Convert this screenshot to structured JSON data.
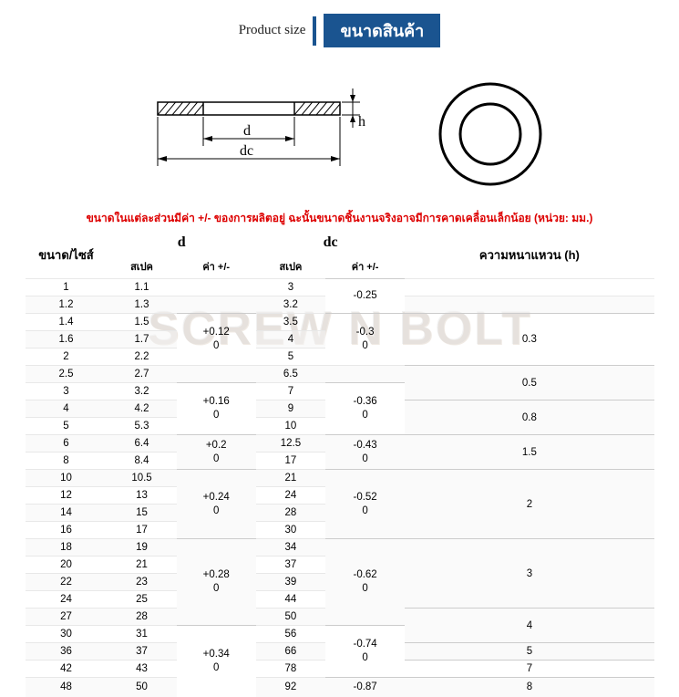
{
  "header": {
    "product_size_en": "Product size",
    "product_size_th": "ขนาดสินค้า"
  },
  "diagram": {
    "labels": {
      "d": "d",
      "dc": "dc",
      "h": "h"
    }
  },
  "note": "ขนาดในแต่ละส่วนมีค่า +/- ของการผลิตอยู่ ฉะนั้นขนาดชิ้นงานจริงอาจมีการคาดเคลื่อนเล็กน้อย (หน่วย: มม.)",
  "watermark": "SCREW N BOLT",
  "table": {
    "columns": {
      "size": "ขนาด/ไซส์",
      "d": "d",
      "dc": "dc",
      "h": "ความหนาแหวน (h)",
      "spec": "สเปค",
      "tol": "ค่า +/-"
    },
    "rows": [
      {
        "size": "1",
        "d_spec": "1.1",
        "dc_spec": "3"
      },
      {
        "size": "1.2",
        "d_spec": "1.3",
        "dc_spec": "3.2"
      },
      {
        "size": "1.4",
        "d_spec": "1.5",
        "dc_spec": "3.5"
      },
      {
        "size": "1.6",
        "d_spec": "1.7",
        "dc_spec": "4"
      },
      {
        "size": "2",
        "d_spec": "2.2",
        "dc_spec": "5"
      },
      {
        "size": "2.5",
        "d_spec": "2.7",
        "dc_spec": "6.5"
      },
      {
        "size": "3",
        "d_spec": "3.2",
        "dc_spec": "7"
      },
      {
        "size": "4",
        "d_spec": "4.2",
        "dc_spec": "9"
      },
      {
        "size": "5",
        "d_spec": "5.3",
        "dc_spec": "10"
      },
      {
        "size": "6",
        "d_spec": "6.4",
        "dc_spec": "12.5"
      },
      {
        "size": "8",
        "d_spec": "8.4",
        "dc_spec": "17"
      },
      {
        "size": "10",
        "d_spec": "10.5",
        "dc_spec": "21"
      },
      {
        "size": "12",
        "d_spec": "13",
        "dc_spec": "24"
      },
      {
        "size": "14",
        "d_spec": "15",
        "dc_spec": "28"
      },
      {
        "size": "16",
        "d_spec": "17",
        "dc_spec": "30"
      },
      {
        "size": "18",
        "d_spec": "19",
        "dc_spec": "34"
      },
      {
        "size": "20",
        "d_spec": "21",
        "dc_spec": "37"
      },
      {
        "size": "22",
        "d_spec": "23",
        "dc_spec": "39"
      },
      {
        "size": "24",
        "d_spec": "25",
        "dc_spec": "44"
      },
      {
        "size": "27",
        "d_spec": "28",
        "dc_spec": "50"
      },
      {
        "size": "30",
        "d_spec": "31",
        "dc_spec": "56"
      },
      {
        "size": "36",
        "d_spec": "37",
        "dc_spec": "66"
      },
      {
        "size": "42",
        "d_spec": "43",
        "dc_spec": "78"
      },
      {
        "size": "48",
        "d_spec": "50",
        "dc_spec": "92"
      }
    ],
    "d_tol_groups": [
      {
        "start": 2,
        "span": 3,
        "t1": "+0.12",
        "t2": "0"
      },
      {
        "start": 6,
        "span": 3,
        "t1": "+0.16",
        "t2": "0"
      },
      {
        "start": 9,
        "span": 2,
        "t1": "+0.2",
        "t2": "0"
      },
      {
        "start": 11,
        "span": 4,
        "t1": "+0.24",
        "t2": "0"
      },
      {
        "start": 15,
        "span": 5,
        "t1": "+0.28",
        "t2": "0"
      },
      {
        "start": 20,
        "span": 4,
        "t1": "+0.34",
        "t2": "0"
      }
    ],
    "dc_tol_groups": [
      {
        "start": 0,
        "span": 2,
        "t1": "-0.25",
        "t2": ""
      },
      {
        "start": 2,
        "span": 3,
        "t1": "-0.3",
        "t2": "0"
      },
      {
        "start": 6,
        "span": 3,
        "t1": "-0.36",
        "t2": "0"
      },
      {
        "start": 9,
        "span": 2,
        "t1": "-0.43",
        "t2": "0"
      },
      {
        "start": 11,
        "span": 4,
        "t1": "-0.52",
        "t2": "0"
      },
      {
        "start": 15,
        "span": 5,
        "t1": "-0.62",
        "t2": "0"
      },
      {
        "start": 20,
        "span": 3,
        "t1": "-0.74",
        "t2": "0"
      },
      {
        "start": 23,
        "span": 1,
        "t1": "-0.87",
        "t2": ""
      }
    ],
    "h_groups": [
      {
        "start": 2,
        "span": 3,
        "val": "0.3"
      },
      {
        "start": 5,
        "span": 2,
        "val": "0.5"
      },
      {
        "start": 7,
        "span": 2,
        "val": "0.8"
      },
      {
        "start": 9,
        "span": 2,
        "val": "1.5"
      },
      {
        "start": 11,
        "span": 4,
        "val": "2"
      },
      {
        "start": 15,
        "span": 4,
        "val": "3"
      },
      {
        "start": 19,
        "span": 2,
        "val": "4"
      },
      {
        "start": 21,
        "span": 1,
        "val": "5"
      },
      {
        "start": 22,
        "span": 1,
        "val": "7"
      },
      {
        "start": 23,
        "span": 1,
        "val": "8"
      }
    ]
  },
  "colors": {
    "badge_bg": "#1a5490",
    "badge_fg": "#ffffff",
    "note": "#d00000",
    "grid": "#e8e8e8"
  }
}
